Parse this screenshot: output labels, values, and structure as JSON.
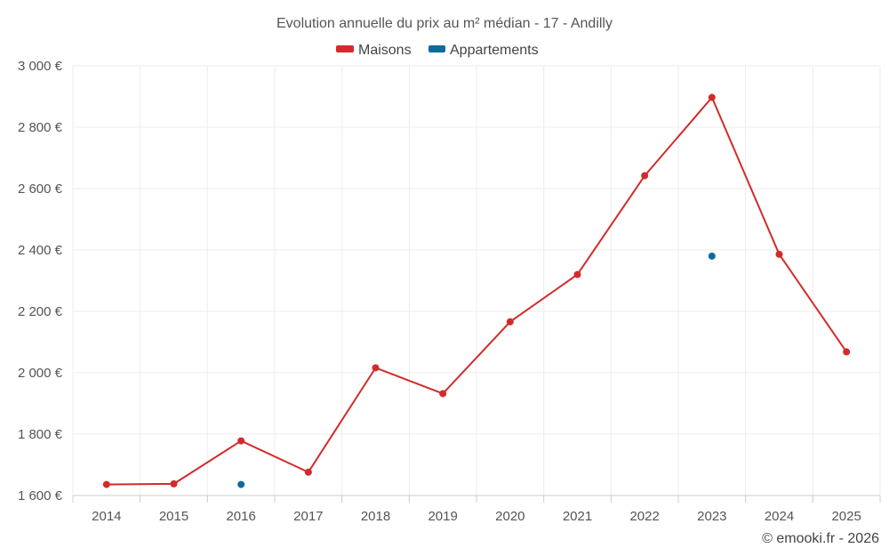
{
  "chart_data": {
    "type": "line",
    "title": "Evolution annuelle du prix au m² médian - 17 - Andilly",
    "categories": [
      "2014",
      "2015",
      "2016",
      "2017",
      "2018",
      "2019",
      "2020",
      "2021",
      "2022",
      "2023",
      "2024",
      "2025"
    ],
    "series": [
      {
        "name": "Maisons",
        "color": "#d42a2a",
        "values": [
          1636,
          1638,
          1778,
          1676,
          2016,
          1932,
          2166,
          2320,
          2642,
          2897,
          2386,
          2068
        ]
      },
      {
        "name": "Appartements",
        "color": "#0c6a9e",
        "values": [
          null,
          null,
          1636,
          null,
          null,
          null,
          null,
          null,
          null,
          2380,
          null,
          null
        ]
      }
    ],
    "y_ticks": [
      "1 600 €",
      "1 800 €",
      "2 000 €",
      "2 200 €",
      "2 400 €",
      "2 600 €",
      "2 800 €",
      "3 000 €"
    ],
    "ylim": [
      1600,
      3000
    ],
    "ystep": 200,
    "xlabel": "",
    "ylabel": "",
    "grid": true,
    "legend_position": "top-center"
  },
  "credit": "© emooki.fr - 2026"
}
